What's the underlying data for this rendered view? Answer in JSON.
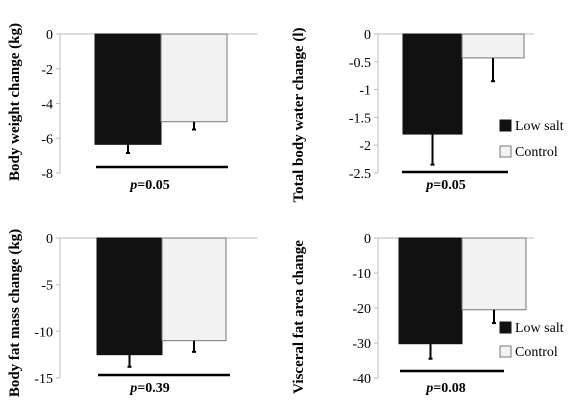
{
  "colors": {
    "low_salt": "#111111",
    "control": "#f2f2f2",
    "control_stroke": "#777777",
    "axis": "#bbbbbb",
    "bracket": "#000000"
  },
  "chart_data": [
    {
      "type": "bar",
      "ylabel": "Body weight change (kg)",
      "ylim": [
        -8,
        0
      ],
      "yticks": [
        0,
        -2,
        -4,
        -6,
        -8
      ],
      "ytick_labels": [
        "0",
        "-2",
        "-4",
        "-6",
        "-8"
      ],
      "series": [
        {
          "name": "Low salt",
          "value": -6.35,
          "err": 0.5
        },
        {
          "name": "Control",
          "value": -5.05,
          "err": 0.45
        }
      ],
      "p_label": "p",
      "p_value": "=0.05",
      "legend": false
    },
    {
      "type": "bar",
      "ylabel": "Total body water change (l)",
      "ylim": [
        -2.5,
        0
      ],
      "yticks": [
        0,
        -0.5,
        -1,
        -1.5,
        -2,
        -2.5
      ],
      "ytick_labels": [
        "0",
        "-0.5",
        "-1",
        "-1.5",
        "-2",
        "-2.5"
      ],
      "series": [
        {
          "name": "Low salt",
          "value": -1.8,
          "err": 0.55
        },
        {
          "name": "Control",
          "value": -0.43,
          "err": 0.42
        }
      ],
      "p_label": "p",
      "p_value": "=0.05",
      "legend": true,
      "legend_position": "right"
    },
    {
      "type": "bar",
      "ylabel": "Body fat mass change (kg)",
      "ylim": [
        -15,
        0
      ],
      "yticks": [
        0,
        -5,
        -10,
        -15
      ],
      "ytick_labels": [
        "0",
        "-5",
        "-10",
        "-15"
      ],
      "series": [
        {
          "name": "Low salt",
          "value": -12.5,
          "err": 1.3
        },
        {
          "name": "Control",
          "value": -11.0,
          "err": 1.2
        }
      ],
      "p_label": "p",
      "p_value": "=0.39",
      "legend": false
    },
    {
      "type": "bar",
      "ylabel": "Visceral fat area change",
      "ylim": [
        -40,
        0
      ],
      "yticks": [
        0,
        -10,
        -20,
        -30,
        -40
      ],
      "ytick_labels": [
        "0",
        "-10",
        "-20",
        "-30",
        "-40"
      ],
      "series": [
        {
          "name": "Low salt",
          "value": -30.2,
          "err": 4.3
        },
        {
          "name": "Control",
          "value": -20.5,
          "err": 3.8
        }
      ],
      "p_label": "p",
      "p_value": "=0.08",
      "legend": true,
      "legend_position": "right"
    }
  ]
}
